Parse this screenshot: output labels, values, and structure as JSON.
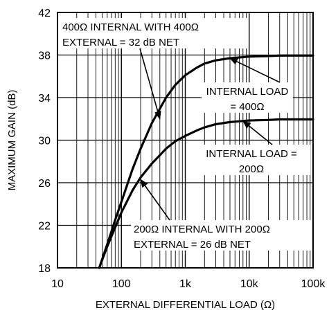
{
  "chart_data": {
    "type": "line",
    "title": "",
    "xlabel": "EXTERNAL DIFFERENTIAL LOAD (Ω)",
    "ylabel": "MAXIMUM GAIN (dB)",
    "x_scale": "log",
    "xlim": [
      10,
      100000
    ],
    "ylim": [
      18,
      42
    ],
    "x_ticks": [
      {
        "value": 10,
        "label": "10"
      },
      {
        "value": 100,
        "label": "100"
      },
      {
        "value": 1000,
        "label": "1k"
      },
      {
        "value": 10000,
        "label": "10k"
      },
      {
        "value": 100000,
        "label": "100k"
      }
    ],
    "y_ticks": [
      {
        "value": 18,
        "label": "18"
      },
      {
        "value": 22,
        "label": "22"
      },
      {
        "value": 26,
        "label": "26"
      },
      {
        "value": 30,
        "label": "30"
      },
      {
        "value": 34,
        "label": "34"
      },
      {
        "value": 38,
        "label": "38"
      },
      {
        "value": 42,
        "label": "42"
      }
    ],
    "grid": true,
    "colors": {
      "line": "#000000",
      "grid": "#000000",
      "background": "#ffffff"
    },
    "series": [
      {
        "x": [
          45,
          60,
          80,
          100,
          150,
          200,
          300,
          500,
          700,
          1000,
          1500,
          2000,
          3000,
          5000,
          10000,
          20000,
          30000,
          50000,
          100000
        ],
        "y": [
          18,
          20.2,
          22.5,
          24.2,
          27.3,
          29.2,
          31.6,
          34.0,
          35.2,
          36.1,
          36.8,
          37.2,
          37.5,
          37.7,
          37.85,
          37.9,
          37.95,
          37.95,
          37.95
        ]
      },
      {
        "x": [
          45,
          60,
          80,
          100,
          150,
          200,
          300,
          500,
          700,
          1000,
          1500,
          2000,
          3000,
          5000,
          10000,
          20000,
          30000,
          50000,
          100000
        ],
        "y": [
          18,
          20.0,
          21.8,
          23.2,
          25.3,
          26.5,
          27.8,
          29.2,
          29.9,
          30.4,
          30.9,
          31.2,
          31.5,
          31.7,
          31.85,
          31.9,
          31.95,
          31.95,
          31.95
        ]
      }
    ],
    "annotations": [
      {
        "lines": [
          "400Ω INTERNAL WITH 400Ω",
          "EXTERNAL = 32 dB NET"
        ],
        "arrow_to": {
          "x": 400,
          "y": 32
        }
      },
      {
        "lines": [
          "INTERNAL LOAD",
          "= 400Ω"
        ],
        "arrow_to": {
          "x": 5000,
          "y": 37.7
        }
      },
      {
        "lines": [
          "INTERNAL LOAD =",
          "200Ω"
        ],
        "arrow_to": {
          "x": 8000,
          "y": 31.8
        }
      },
      {
        "lines": [
          "200Ω INTERNAL WITH 200Ω",
          "EXTERNAL = 26 dB NET"
        ],
        "arrow_to": {
          "x": 200,
          "y": 26.3
        }
      }
    ]
  }
}
